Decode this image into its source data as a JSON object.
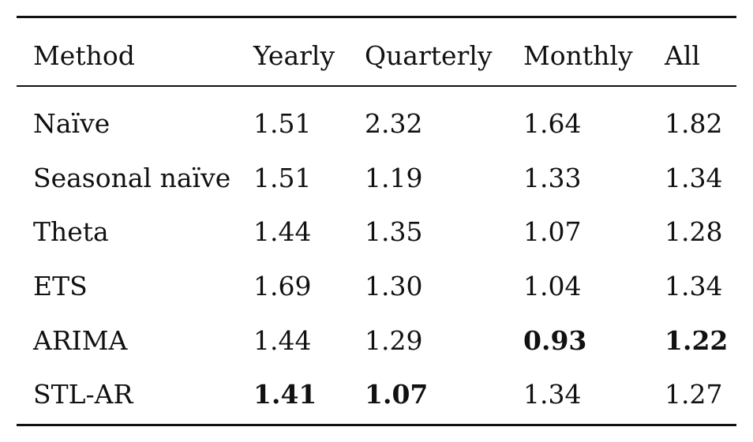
{
  "table": {
    "headers": [
      "Method",
      "Yearly",
      "Quarterly",
      "Monthly",
      "All"
    ],
    "rows": [
      {
        "method": "Naïve",
        "yearly": "1.51",
        "quarterly": "2.32",
        "monthly": "1.64",
        "all": "1.82",
        "bold": []
      },
      {
        "method": "Seasonal naïve",
        "yearly": "1.51",
        "quarterly": "1.19",
        "monthly": "1.33",
        "all": "1.34",
        "bold": []
      },
      {
        "method": "Theta",
        "yearly": "1.44",
        "quarterly": "1.35",
        "monthly": "1.07",
        "all": "1.28",
        "bold": []
      },
      {
        "method": "ETS",
        "yearly": "1.69",
        "quarterly": "1.30",
        "monthly": "1.04",
        "all": "1.34",
        "bold": []
      },
      {
        "method": "ARIMA",
        "yearly": "1.44",
        "quarterly": "1.29",
        "monthly": "0.93",
        "all": "1.22",
        "bold": [
          "monthly",
          "all"
        ]
      },
      {
        "method": "STL-AR",
        "yearly": "1.41",
        "quarterly": "1.07",
        "monthly": "1.34",
        "all": "1.27",
        "bold": [
          "yearly",
          "quarterly"
        ]
      }
    ]
  }
}
